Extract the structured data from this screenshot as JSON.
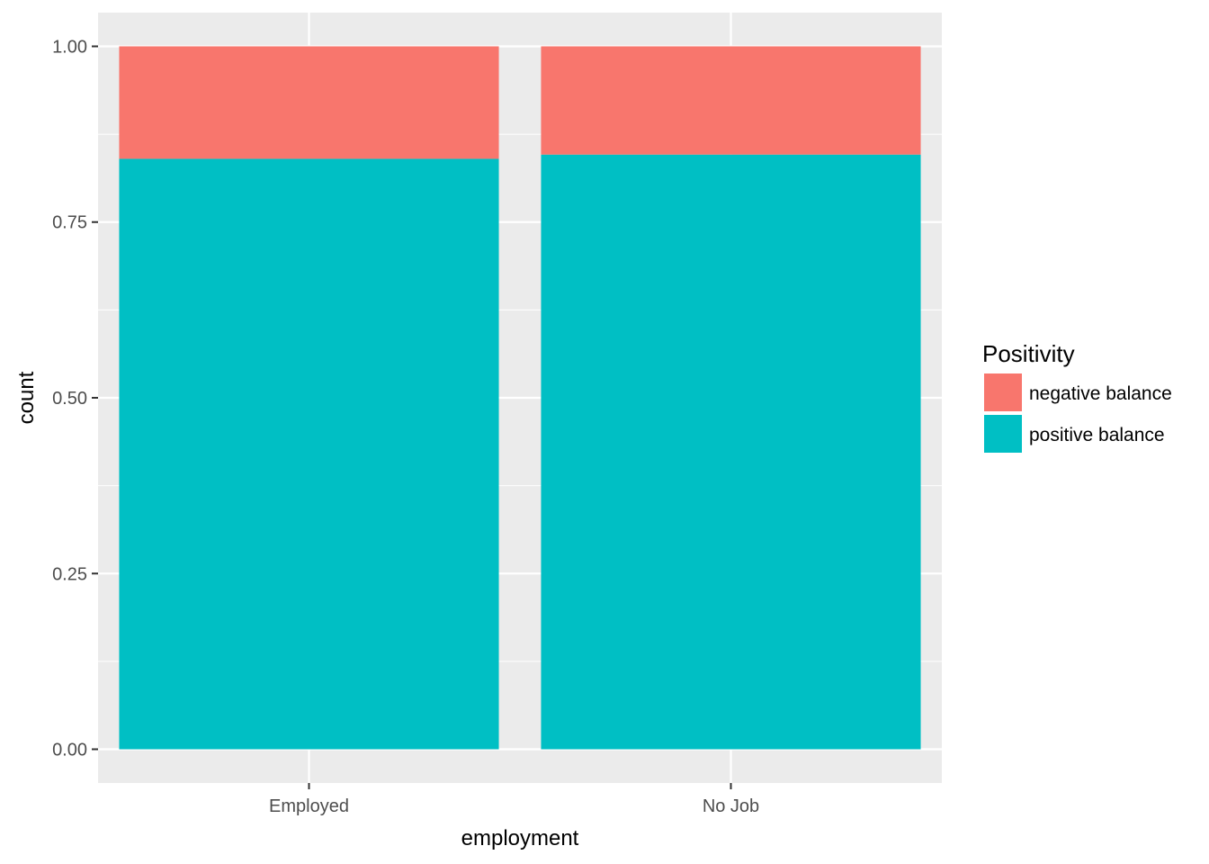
{
  "chart_data": {
    "type": "bar",
    "stacked": true,
    "categories": [
      "Employed",
      "No Job"
    ],
    "series": [
      {
        "name": "negative balance",
        "values": [
          0.16,
          0.154
        ],
        "color": "#F8766D"
      },
      {
        "name": "positive balance",
        "values": [
          0.84,
          0.846
        ],
        "color": "#00BFC4"
      }
    ],
    "xlabel": "employment",
    "ylabel": "count",
    "ylim": [
      -0.048,
      1.048
    ],
    "yticks": [
      0,
      0.25,
      0.5,
      0.75,
      1
    ],
    "ytick_labels": [
      "0.00",
      "0.25",
      "0.50",
      "0.75",
      "1.00"
    ],
    "grid": true,
    "panel_background": "#EBEBEB",
    "grid_color": "#FFFFFF",
    "legend": {
      "title": "Positivity",
      "placement": "right",
      "entries": [
        "negative balance",
        "positive balance"
      ]
    }
  }
}
